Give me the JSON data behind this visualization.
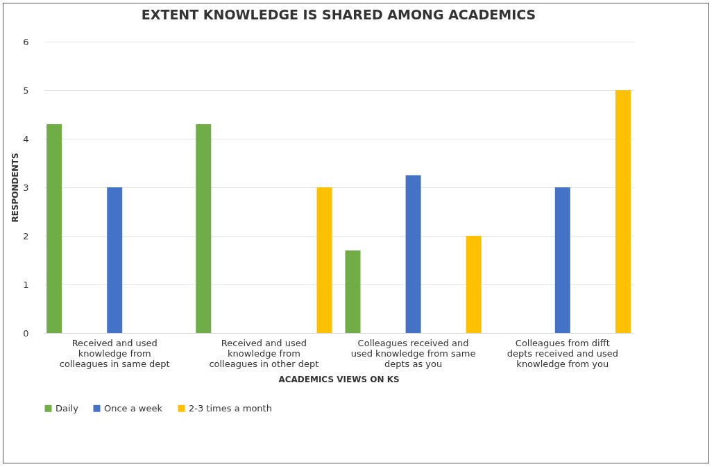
{
  "chart_data": {
    "type": "bar",
    "title": "EXTENT KNOWLEDGE IS SHARED AMONG ACADEMICS",
    "xlabel": "ACADEMICS VIEWS ON KS",
    "ylabel": "RESPONDENTS",
    "categories": [
      "Received and used knowledge from colleagues in same dept",
      "Received and used knowledge from colleagues in other dept",
      "Colleagues received and used knowledge from same depts as you",
      "Colleagues from difft depts received and used knowledge from you"
    ],
    "series": [
      {
        "name": "Daily",
        "color": "#70ad47",
        "values": [
          4.3,
          4.3,
          1.7,
          null
        ]
      },
      {
        "name": "Once a week",
        "color": "#4472c4",
        "values": [
          3,
          null,
          3.25,
          3
        ]
      },
      {
        "name": "2-3 times a month",
        "color": "#ffc000",
        "values": [
          null,
          3,
          2,
          5
        ]
      }
    ],
    "ylim": [
      0,
      6
    ],
    "yticks": [
      0,
      1,
      2,
      3,
      4,
      5,
      6
    ],
    "grid": "y",
    "legend": "bottom"
  }
}
